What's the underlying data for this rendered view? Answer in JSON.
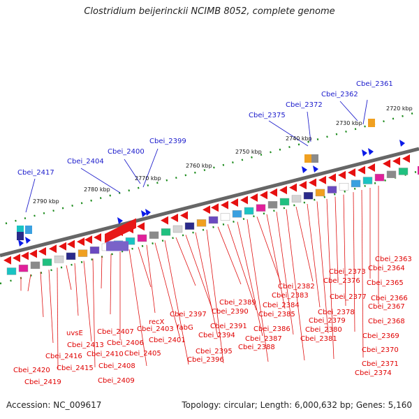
{
  "title": "Clostridium beijerinckii NCIMB 8052, complete genome",
  "footer": {
    "accession": "Accession: NC_009617",
    "summary": "Topology: circular; Length: 6,000,632 bp; Genes: 5,160"
  },
  "scale_labels": [
    "2720 kbp",
    "2730 kbp",
    "2740 kbp",
    "2750 kbp",
    "2760 kbp",
    "2770 kbp",
    "2780 kbp",
    "2790 kbp"
  ],
  "upper_genes": [
    "Cbei_2361",
    "Cbei_2362",
    "Cbei_2372",
    "Cbei_2375",
    "Cbei_2399",
    "Cbei_2400",
    "Cbei_2404",
    "Cbei_2417"
  ],
  "lower_genes": [
    "Cbei_2363",
    "Cbei_2364",
    "Cbei_2373",
    "Cbei_2365",
    "Cbei_2376",
    "Cbei_2366",
    "Cbei_2377",
    "Cbei_2367",
    "Cbei_2382",
    "Cbei_2383",
    "Cbei_2384",
    "Cbei_2378",
    "Cbei_2368",
    "Cbei_2389",
    "Cbei_2390",
    "Cbei_2385",
    "Cbei_2379",
    "Cbei_2397",
    "Cbei_2391",
    "Cbei_2386",
    "Cbei_2380",
    "Cbei_2369",
    "recX",
    "fabG",
    "Cbei_2387",
    "Cbei_2381",
    "uvsE",
    "Cbei_2407",
    "Cbei_2403",
    "Cbei_2394",
    "Cbei_2370",
    "Cbei_2413",
    "Cbei_2406",
    "Cbei_2401",
    "Cbei_2388",
    "Cbei_2416",
    "Cbei_2410",
    "Cbei_2405",
    "Cbei_2395",
    "Cbei_2415",
    "Cbei_2408",
    "Cbei_2396",
    "Cbei_2371",
    "Cbei_2420",
    "Cbei_2374",
    "Cbei_2409",
    "Cbei_2419"
  ]
}
